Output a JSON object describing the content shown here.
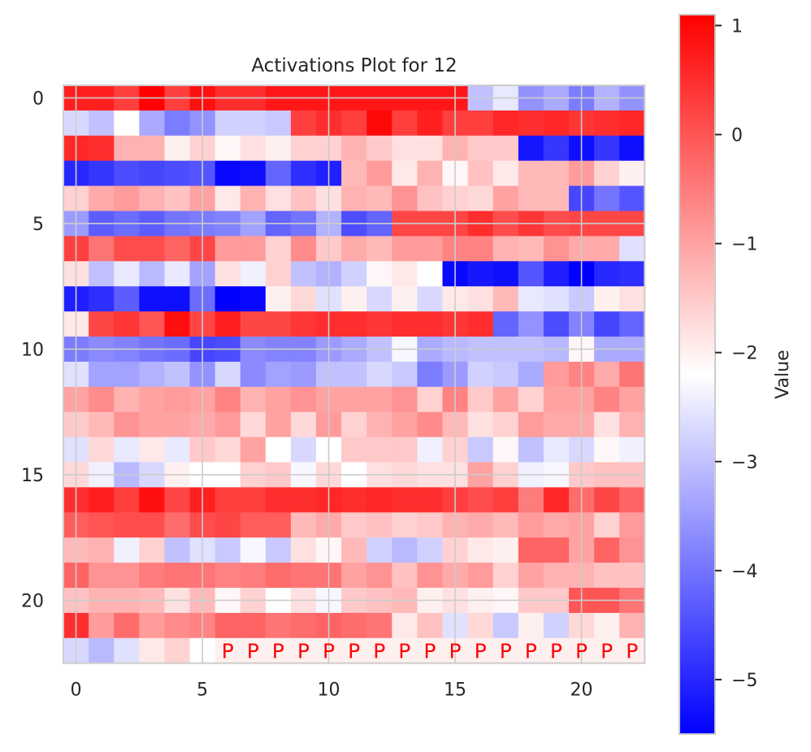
{
  "chart_data": {
    "type": "heatmap",
    "title": "Activations Plot for 12",
    "xlabel": "",
    "ylabel": "",
    "x_ticks": [
      0,
      5,
      10,
      15,
      20
    ],
    "y_ticks": [
      0,
      5,
      10,
      15,
      20
    ],
    "grid": true,
    "colormap": "bwr",
    "colormap_colors": [
      "#0000ff",
      "#ffffff",
      "#ff0000"
    ],
    "vmin": -5.5,
    "vmax": 1.1,
    "colorbar": {
      "label": "Value",
      "ticks": [
        1,
        0,
        -1,
        -2,
        -3,
        -4,
        -5
      ],
      "tick_labels": [
        "1",
        "0",
        "−1",
        "−2",
        "−3",
        "−4",
        "−5"
      ],
      "placement": "right"
    },
    "pad_marker": {
      "text": "P",
      "row": 22,
      "cols": [
        6,
        7,
        8,
        9,
        10,
        11,
        12,
        13,
        14,
        15,
        16,
        17,
        18,
        19,
        20,
        21,
        22
      ]
    },
    "rows": 23,
    "cols": 23,
    "values": [
      [
        0.7,
        0.7,
        0.3,
        1.1,
        0.3,
        0.9,
        0.5,
        0.5,
        0.8,
        0.8,
        0.8,
        0.8,
        0.8,
        0.8,
        0.8,
        0.8,
        -3.0,
        -2.5,
        -3.6,
        -3.3,
        -3.9,
        -3.2,
        -3.6
      ],
      [
        -2.7,
        -3.0,
        -2.2,
        -3.3,
        -3.9,
        -3.6,
        -2.8,
        -2.8,
        -2.9,
        0.3,
        0.5,
        0.3,
        1.0,
        0.3,
        0.7,
        0.3,
        0.3,
        0.6,
        0.5,
        0.6,
        0.4,
        0.5,
        0.6
      ],
      [
        0.6,
        0.5,
        -1.2,
        -1.2,
        -2.0,
        -1.6,
        -2.1,
        -1.8,
        -2.0,
        -1.6,
        -1.6,
        -1.2,
        -1.5,
        -1.8,
        -1.8,
        -1.2,
        -1.5,
        -1.5,
        -5.2,
        -4.8,
        -5.3,
        -4.8,
        -5.3
      ],
      [
        -5.0,
        -4.8,
        -4.5,
        -4.6,
        -4.5,
        -4.4,
        -5.4,
        -5.3,
        -4.2,
        -4.9,
        -5.1,
        -1.3,
        -0.9,
        -1.9,
        -1.2,
        -2.1,
        -1.4,
        -1.9,
        -1.3,
        -1.3,
        -0.9,
        -1.6,
        -2.0
      ],
      [
        -1.6,
        -1.1,
        -0.9,
        -1.2,
        -1.4,
        -1.0,
        -1.9,
        -1.2,
        -1.8,
        -1.4,
        -1.8,
        -1.2,
        -1.3,
        -0.8,
        -1.4,
        -1.6,
        -1.7,
        -1.0,
        -1.3,
        -1.3,
        -4.6,
        -4.0,
        -4.4
      ],
      [
        -3.5,
        -4.3,
        -4.1,
        -4.3,
        -4.0,
        -3.9,
        -3.8,
        -3.4,
        -4.2,
        -4.0,
        -3.2,
        -4.5,
        -4.2,
        0.2,
        0.2,
        0.2,
        0.5,
        0.1,
        0.4,
        0.1,
        0.2,
        0.2,
        0.2
      ],
      [
        0.3,
        -0.4,
        0.1,
        0.1,
        -0.2,
        0.2,
        -0.9,
        -0.9,
        -1.6,
        -0.7,
        -1.5,
        -1.1,
        -1.3,
        -0.9,
        -0.9,
        -0.6,
        -0.6,
        -1.2,
        -1.3,
        -0.8,
        -1.1,
        -1.1,
        -2.6
      ],
      [
        -1.8,
        -3.0,
        -2.5,
        -3.1,
        -2.5,
        -3.4,
        -1.8,
        -2.4,
        -1.6,
        -3.0,
        -3.2,
        -2.8,
        -2.1,
        -1.9,
        -2.2,
        -5.4,
        -5.2,
        -5.3,
        -4.4,
        -5.1,
        -5.5,
        -5.0,
        -4.9
      ],
      [
        -5.1,
        -4.9,
        -4.3,
        -5.3,
        -5.3,
        -4.1,
        -5.5,
        -5.4,
        -2.0,
        -1.7,
        -2.6,
        -2.0,
        -2.7,
        -2.0,
        -2.7,
        -1.9,
        -1.8,
        -1.3,
        -2.5,
        -2.6,
        -2.9,
        -2.0,
        -1.8
      ],
      [
        -1.9,
        0.2,
        0.4,
        0.0,
        0.9,
        0.2,
        0.7,
        0.2,
        0.2,
        0.4,
        0.5,
        0.5,
        0.4,
        0.5,
        0.5,
        0.4,
        0.5,
        -4.2,
        -3.6,
        -4.5,
        -3.8,
        -4.6,
        -4.2
      ],
      [
        -3.9,
        -3.7,
        -3.8,
        -4.0,
        -4.1,
        -4.6,
        -4.5,
        -3.7,
        -3.8,
        -3.8,
        -3.5,
        -3.3,
        -3.0,
        -2.3,
        -3.3,
        -3.1,
        -3.0,
        -3.0,
        -3.0,
        -3.1,
        -2.1,
        -3.3,
        -3.3
      ],
      [
        -2.6,
        -3.4,
        -3.4,
        -3.2,
        -3.0,
        -3.6,
        -2.7,
        -3.7,
        -3.4,
        -3.5,
        -3.0,
        -3.0,
        -2.7,
        -2.9,
        -3.9,
        -3.5,
        -2.8,
        -2.9,
        -3.3,
        -0.9,
        -0.6,
        -1.1,
        -0.4
      ],
      [
        -1.0,
        -0.7,
        -1.2,
        -1.0,
        -0.9,
        -1.0,
        -0.6,
        -1.2,
        -1.0,
        -0.8,
        -1.0,
        -1.0,
        -1.0,
        -0.8,
        -1.6,
        -0.6,
        -1.5,
        -1.0,
        -1.6,
        -1.0,
        -1.0,
        -0.6,
        -1.0
      ],
      [
        -1.5,
        -1.3,
        -0.8,
        -1.0,
        -1.0,
        -1.1,
        -0.9,
        -1.7,
        -1.0,
        -1.7,
        -0.9,
        -1.6,
        -1.2,
        -1.0,
        -0.7,
        -1.3,
        -1.8,
        -1.6,
        -0.9,
        -1.1,
        -1.1,
        -1.8,
        -1.2
      ],
      [
        -2.6,
        -1.7,
        -2.5,
        -1.9,
        -2.5,
        -1.5,
        -1.7,
        -1.0,
        -2.2,
        -2.7,
        -2.2,
        -1.5,
        -1.5,
        -1.5,
        -2.4,
        -1.6,
        -2.9,
        -2.1,
        -3.0,
        -2.5,
        -2.7,
        -2.1,
        -2.4
      ],
      [
        -1.7,
        -2.4,
        -3.1,
        -2.7,
        -2.0,
        -2.2,
        -2.2,
        -1.6,
        -1.5,
        -2.3,
        -1.7,
        -2.2,
        -1.8,
        -1.7,
        -1.8,
        -1.8,
        -1.0,
        -1.6,
        -2.4,
        -2.3,
        -1.5,
        -1.4,
        -1.4
      ],
      [
        0.5,
        0.7,
        0.3,
        0.9,
        0.2,
        0.7,
        0.3,
        0.3,
        0.5,
        0.5,
        0.6,
        0.5,
        0.6,
        0.5,
        0.5,
        0.3,
        0.1,
        0.3,
        -0.5,
        0.6,
        -0.3,
        0.2,
        -0.2
      ],
      [
        -0.1,
        0.0,
        0.1,
        0.1,
        -0.3,
        0.1,
        0.2,
        -0.1,
        -0.1,
        -1.3,
        -1.1,
        -1.5,
        -1.4,
        -1.6,
        -1.5,
        -1.2,
        -1.1,
        -1.3,
        -0.9,
        -1.1,
        -1.0,
        -1.6,
        -0.9
      ],
      [
        -1.3,
        -1.2,
        -2.4,
        -1.6,
        -3.0,
        -2.6,
        -2.9,
        -2.3,
        -2.9,
        -1.8,
        -2.1,
        -1.3,
        -2.8,
        -3.1,
        -2.8,
        -1.6,
        -1.9,
        -2.0,
        -0.2,
        -0.2,
        -1.0,
        -0.2,
        -0.8
      ],
      [
        -0.2,
        -0.8,
        -0.8,
        -0.5,
        -0.4,
        -0.4,
        -0.6,
        -0.5,
        -0.3,
        -0.4,
        -0.4,
        -1.0,
        -0.8,
        -1.4,
        -0.8,
        -1.1,
        -0.9,
        -1.6,
        -1.0,
        -1.2,
        -1.2,
        -1.4,
        -1.4
      ],
      [
        -1.4,
        -1.2,
        -1.2,
        -1.3,
        -1.8,
        -1.3,
        -2.1,
        -1.6,
        -2.2,
        -1.8,
        -2.3,
        -1.5,
        -1.4,
        -1.3,
        -2.0,
        -1.8,
        -2.0,
        -2.1,
        -1.5,
        -1.5,
        0.0,
        0.0,
        -0.4
      ],
      [
        0.5,
        -0.9,
        -0.3,
        -0.9,
        -0.7,
        -0.6,
        -0.2,
        -0.2,
        -0.4,
        -0.3,
        -0.2,
        -0.3,
        -0.4,
        -1.9,
        -1.4,
        -2.6,
        -1.7,
        -2.9,
        -2.0,
        -2.8,
        -1.7,
        -2.0,
        -1.2
      ],
      [
        -2.7,
        -3.1,
        -2.6,
        -1.9,
        -1.6,
        -2.2,
        -2.0,
        -2.0,
        -2.0,
        -2.0,
        -2.0,
        -2.0,
        -2.0,
        -2.0,
        -2.0,
        -2.0,
        -2.0,
        -2.0,
        -2.0,
        -2.0,
        -2.0,
        -2.0,
        -2.0
      ]
    ]
  }
}
